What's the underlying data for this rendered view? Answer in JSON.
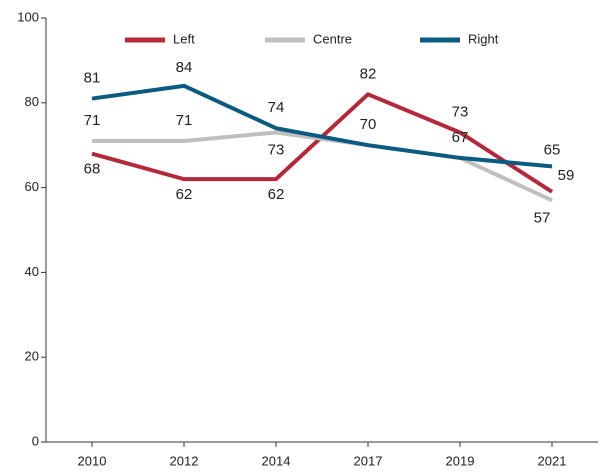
{
  "chart_data": {
    "type": "line",
    "categories": [
      "2010",
      "2012",
      "2014",
      "2017",
      "2019",
      "2021"
    ],
    "series": [
      {
        "name": "Left",
        "color": "#b5283a",
        "values": [
          68,
          62,
          62,
          82,
          73,
          59
        ]
      },
      {
        "name": "Centre",
        "color": "#bfbfbf",
        "values": [
          71,
          71,
          73,
          70,
          67,
          57
        ]
      },
      {
        "name": "Right",
        "color": "#0b5a7f",
        "values": [
          81,
          84,
          74,
          70,
          67,
          65
        ]
      }
    ],
    "ylim": [
      0,
      100
    ],
    "yticks": [
      0,
      20,
      40,
      60,
      80,
      100
    ],
    "legend": "top"
  }
}
